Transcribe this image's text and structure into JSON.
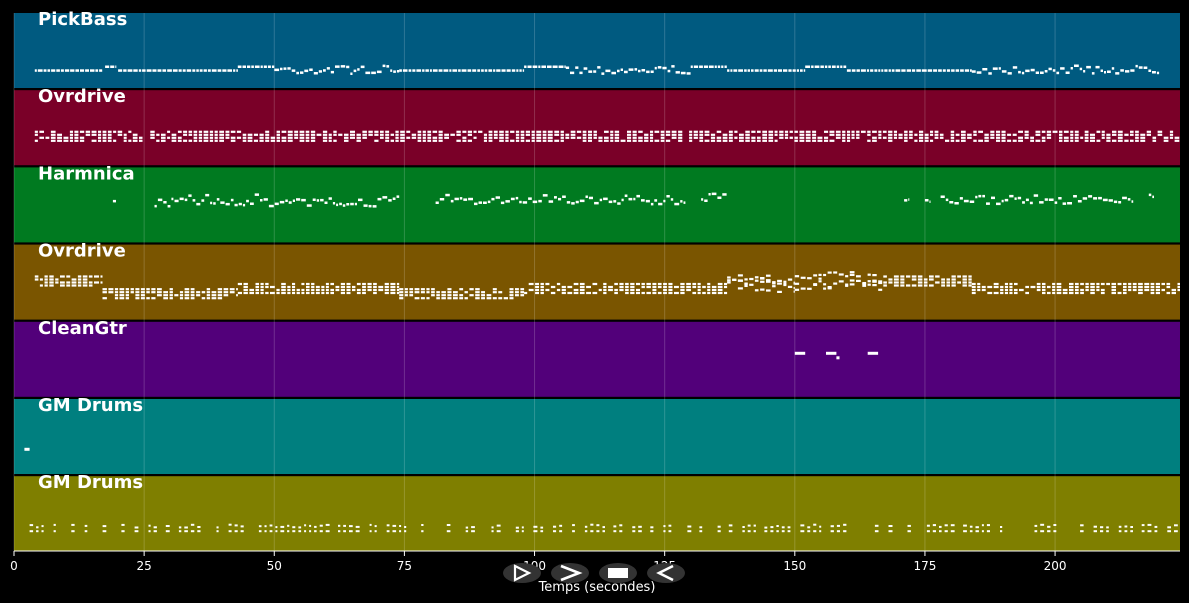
{
  "colors": {
    "background": "#000000",
    "note": "#ffffff",
    "grid": "#ffffff",
    "control_bg": "#333333"
  },
  "xaxis": {
    "label": "Temps (secondes)",
    "range": [
      0,
      224
    ],
    "ticks": [
      0,
      25,
      50,
      75,
      100,
      125,
      150,
      175,
      200
    ],
    "tick_labels": [
      "0",
      "25",
      "50",
      "75",
      "100",
      "125",
      "150",
      "175",
      "200"
    ]
  },
  "tracks": [
    {
      "name": "PickBass",
      "color": "#005a80",
      "style": "bass",
      "segments": [
        {
          "start": 4,
          "end": 17,
          "level": 0.75
        },
        {
          "start": 17.5,
          "end": 19.5,
          "level": 0.7
        },
        {
          "start": 20,
          "end": 43,
          "level": 0.75
        },
        {
          "start": 43,
          "end": 50,
          "level": 0.7
        },
        {
          "start": 50,
          "end": 74,
          "level": 0.74,
          "wavy": true
        },
        {
          "start": 74,
          "end": 98,
          "level": 0.75
        },
        {
          "start": 98,
          "end": 106,
          "level": 0.7
        },
        {
          "start": 106,
          "end": 130,
          "level": 0.74,
          "wavy": true
        },
        {
          "start": 130,
          "end": 137,
          "level": 0.7
        },
        {
          "start": 137,
          "end": 152,
          "level": 0.75
        },
        {
          "start": 152,
          "end": 160,
          "level": 0.7
        },
        {
          "start": 160,
          "end": 184,
          "level": 0.75
        },
        {
          "start": 184,
          "end": 220,
          "level": 0.74,
          "wavy": true
        }
      ]
    },
    {
      "name": "Ovrdrive",
      "color": "#7a0028",
      "style": "chords",
      "segments": [
        {
          "start": 4,
          "end": 224,
          "level": 0.58
        }
      ]
    },
    {
      "name": "Harmnica",
      "color": "#007a20",
      "style": "melody",
      "segments": [
        {
          "start": 19,
          "end": 19.6,
          "level": 0.4
        },
        {
          "start": 27,
          "end": 74,
          "level": 0.45
        },
        {
          "start": 81,
          "end": 129,
          "level": 0.42
        },
        {
          "start": 132,
          "end": 137,
          "level": 0.38
        },
        {
          "start": 171,
          "end": 172,
          "level": 0.46
        },
        {
          "start": 175,
          "end": 176,
          "level": 0.46
        },
        {
          "start": 178,
          "end": 215,
          "level": 0.42
        },
        {
          "start": 218,
          "end": 219,
          "level": 0.4
        }
      ]
    },
    {
      "name": "Ovrdrive",
      "color": "#7a5500",
      "style": "chords",
      "segments": [
        {
          "start": 4,
          "end": 17,
          "level": 0.45
        },
        {
          "start": 17,
          "end": 43,
          "level": 0.62
        },
        {
          "start": 43,
          "end": 74,
          "level": 0.55
        },
        {
          "start": 74,
          "end": 98,
          "level": 0.62
        },
        {
          "start": 98,
          "end": 137,
          "level": 0.55
        },
        {
          "start": 137,
          "end": 150,
          "level": 0.48,
          "wavy": true
        },
        {
          "start": 150,
          "end": 167,
          "level": 0.45,
          "wavy": true
        },
        {
          "start": 167,
          "end": 184,
          "level": 0.45
        },
        {
          "start": 184,
          "end": 224,
          "level": 0.55
        }
      ]
    },
    {
      "name": "CleanGtr",
      "color": "#52007a",
      "style": "sparse",
      "segments": [
        {
          "start": 150,
          "end": 152,
          "level": 0.4
        },
        {
          "start": 156,
          "end": 158,
          "level": 0.4
        },
        {
          "start": 158,
          "end": 158.6,
          "level": 0.46
        },
        {
          "start": 164,
          "end": 166,
          "level": 0.4
        }
      ]
    },
    {
      "name": "GM Drums",
      "color": "#007f7f",
      "style": "sparse",
      "segments": [
        {
          "start": 2,
          "end": 3,
          "level": 0.65
        }
      ]
    },
    {
      "name": "GM Drums",
      "color": "#7f7f00",
      "style": "drums",
      "segments": [
        {
          "start": 3,
          "end": 224,
          "level": 0.68
        }
      ]
    }
  ],
  "controls": [
    {
      "name": "play-slow-button",
      "icon": "play-outline-icon"
    },
    {
      "name": "play-button",
      "icon": "chevron-right-icon"
    },
    {
      "name": "stop-button",
      "icon": "stop-square-icon"
    },
    {
      "name": "rewind-button",
      "icon": "play-back-icon"
    }
  ]
}
